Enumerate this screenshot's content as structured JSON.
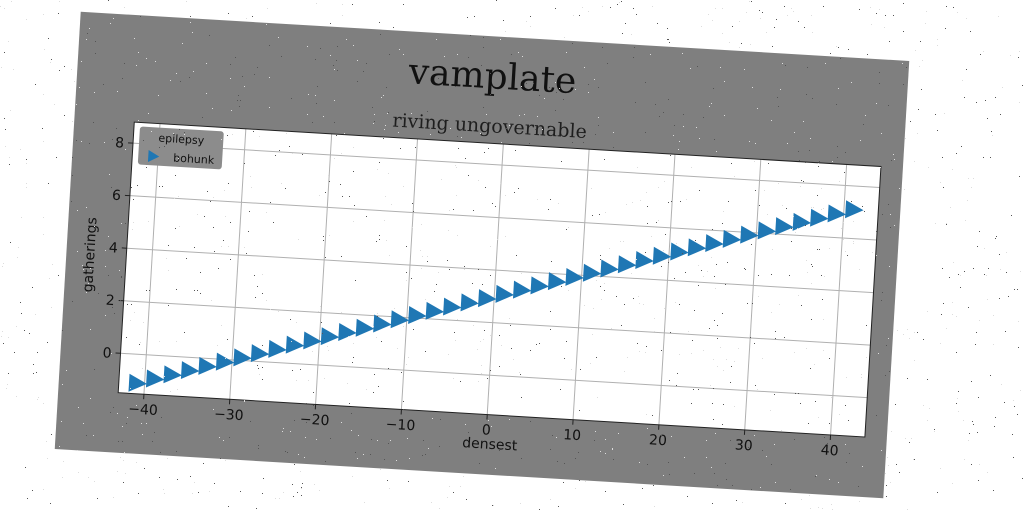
{
  "chart_data": {
    "type": "scatter",
    "title": "vamplate",
    "subtitle": "riving ungovernable",
    "xlabel": "densest",
    "ylabel": "gatherings",
    "xlim": [
      -43,
      44
    ],
    "ylim": [
      -1.5,
      8.8
    ],
    "xticks": [
      -40,
      -30,
      -20,
      -10,
      0,
      10,
      20,
      30,
      40
    ],
    "yticks": [
      0,
      2,
      4,
      6,
      8
    ],
    "xtick_labels": [
      "−40",
      "−30",
      "−20",
      "−10",
      "0",
      "10",
      "20",
      "30",
      "40"
    ],
    "ytick_labels": [
      "0",
      "2",
      "4",
      "6",
      "8"
    ],
    "grid": true,
    "legend": {
      "title": "epilepsy",
      "placement": "top-left",
      "entries": [
        "bohunk"
      ]
    },
    "marker": "triangle-right",
    "colors": {
      "series": "#1f77b4",
      "figure_background": "#7f7f7f",
      "axes_background": "#ffffff",
      "grid": "#b0b0b0",
      "legend_background": "#8c8c8c"
    },
    "series": [
      {
        "name": "bohunk",
        "x": [
          -41,
          -39,
          -37,
          -35,
          -33,
          -31,
          -29,
          -27,
          -25,
          -23,
          -21,
          -19,
          -17,
          -15,
          -13,
          -11,
          -9,
          -7,
          -5,
          -3,
          -1,
          1,
          3,
          5,
          7,
          9,
          11,
          13,
          15,
          17,
          19,
          21,
          23,
          25,
          27,
          29,
          31,
          33,
          35,
          37,
          39,
          41
        ],
        "y": [
          -1.1,
          -0.9,
          -0.7,
          -0.5,
          -0.3,
          -0.1,
          0.1,
          0.3,
          0.5,
          0.7,
          0.9,
          1.1,
          1.3,
          1.5,
          1.7,
          1.9,
          2.1,
          2.3,
          2.5,
          2.7,
          2.9,
          3.1,
          3.3,
          3.5,
          3.7,
          3.9,
          4.1,
          4.3,
          4.5,
          4.7,
          4.9,
          5.1,
          5.3,
          5.5,
          5.7,
          5.9,
          6.1,
          6.3,
          6.5,
          6.7,
          6.9,
          7.1
        ]
      }
    ]
  }
}
